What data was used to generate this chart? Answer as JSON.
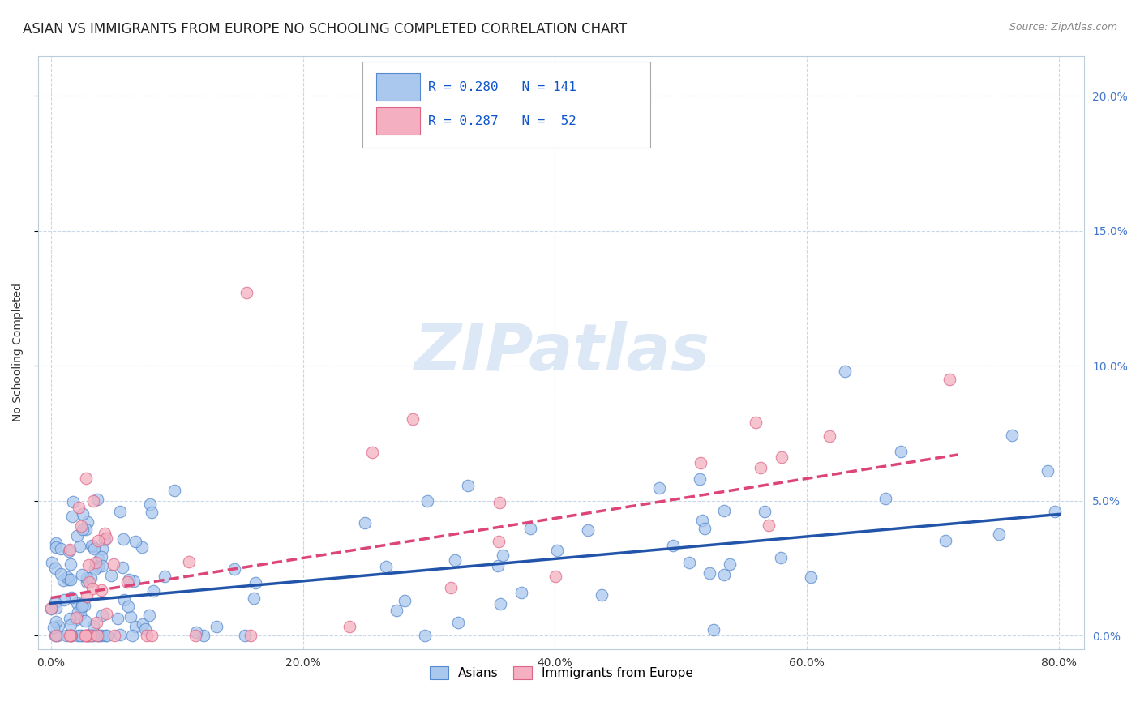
{
  "title": "ASIAN VS IMMIGRANTS FROM EUROPE NO SCHOOLING COMPLETED CORRELATION CHART",
  "source": "Source: ZipAtlas.com",
  "xlabel_ticks": [
    "0.0%",
    "20.0%",
    "40.0%",
    "60.0%",
    "80.0%"
  ],
  "xlabel_tick_vals": [
    0.0,
    0.2,
    0.4,
    0.6,
    0.8
  ],
  "ylabel": "No Schooling Completed",
  "ylabel_ticks": [
    "0.0%",
    "5.0%",
    "10.0%",
    "15.0%",
    "20.0%"
  ],
  "ylabel_tick_vals": [
    0.0,
    0.05,
    0.1,
    0.15,
    0.2
  ],
  "xlim": [
    -0.01,
    0.82
  ],
  "ylim": [
    -0.005,
    0.215
  ],
  "blue_R": 0.28,
  "blue_N": 141,
  "pink_R": 0.287,
  "pink_N": 52,
  "blue_color": "#aac8ee",
  "pink_color": "#f4b0c0",
  "blue_edge_color": "#5588cc",
  "pink_edge_color": "#dd6688",
  "blue_line_color": "#2255aa",
  "pink_line_color": "#dd4477",
  "legend_text_color": "#1155cc",
  "watermark_color": "#dce8f5",
  "background_color": "#ffffff",
  "grid_color": "#c8d8e8",
  "title_fontsize": 12,
  "axis_label_fontsize": 10,
  "tick_fontsize": 10,
  "right_tick_color": "#4477cc",
  "blue_line_start_y": 0.012,
  "blue_line_end_y": 0.045,
  "pink_line_start_y": 0.014,
  "pink_line_end_y": 0.073
}
